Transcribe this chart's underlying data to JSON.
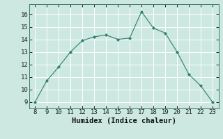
{
  "x": [
    8,
    9,
    10,
    11,
    12,
    13,
    14,
    15,
    16,
    17,
    18,
    19,
    20,
    21,
    22,
    23
  ],
  "y": [
    9.0,
    10.7,
    11.8,
    13.0,
    13.9,
    14.2,
    14.35,
    14.0,
    14.1,
    16.2,
    14.9,
    14.5,
    13.0,
    11.2,
    10.3,
    9.0
  ],
  "xlabel": "Humidex (Indice chaleur)",
  "line_color": "#2e7d6e",
  "marker_color": "#2e7d6e",
  "bg_color": "#cce8e0",
  "grid_color": "#ffffff",
  "spine_color": "#3d7a6e",
  "xlim": [
    7.5,
    23.5
  ],
  "ylim": [
    8.5,
    16.8
  ],
  "xticks": [
    8,
    9,
    10,
    11,
    12,
    13,
    14,
    15,
    16,
    17,
    18,
    19,
    20,
    21,
    22,
    23
  ],
  "yticks": [
    9,
    10,
    11,
    12,
    13,
    14,
    15,
    16
  ],
  "tick_label_fontsize": 6.5,
  "xlabel_fontsize": 7.5
}
